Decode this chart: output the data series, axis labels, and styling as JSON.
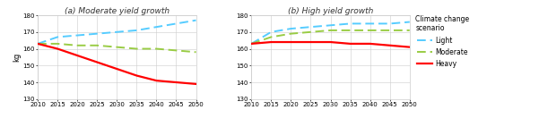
{
  "years": [
    2010,
    2015,
    2020,
    2025,
    2030,
    2035,
    2040,
    2045,
    2050
  ],
  "panel_a": {
    "title": "(a) Moderate yield growth",
    "light": [
      163,
      167,
      168,
      169,
      170,
      171,
      173,
      175,
      177
    ],
    "moderate": [
      163,
      163,
      162,
      162,
      161,
      160,
      160,
      159,
      158
    ],
    "heavy": [
      163,
      160,
      156,
      152,
      148,
      144,
      141,
      140,
      139
    ]
  },
  "panel_b": {
    "title": "(b) High yield growth",
    "light": [
      163,
      170,
      172,
      173,
      174,
      175,
      175,
      175,
      176
    ],
    "moderate": [
      163,
      167,
      169,
      170,
      171,
      171,
      171,
      171,
      171
    ],
    "heavy": [
      163,
      164,
      164,
      164,
      164,
      163,
      163,
      162,
      161
    ]
  },
  "ylim": [
    130,
    180
  ],
  "yticks": [
    130,
    140,
    150,
    160,
    170,
    180
  ],
  "ylabel": "kg",
  "light_color": "#55CCFF",
  "moderate_color": "#99CC44",
  "heavy_color": "#FF0000",
  "legend_title": "Climate change\nscenario",
  "legend_labels": [
    "Light",
    "Moderate",
    "Heavy"
  ],
  "background_color": "#FFFFFF",
  "grid_color": "#CCCCCC",
  "title_color": "#333333",
  "title_fontsize": 6.5,
  "tick_fontsize": 5.0,
  "ylabel_fontsize": 6.0,
  "legend_fontsize": 5.5,
  "legend_title_fontsize": 5.5
}
